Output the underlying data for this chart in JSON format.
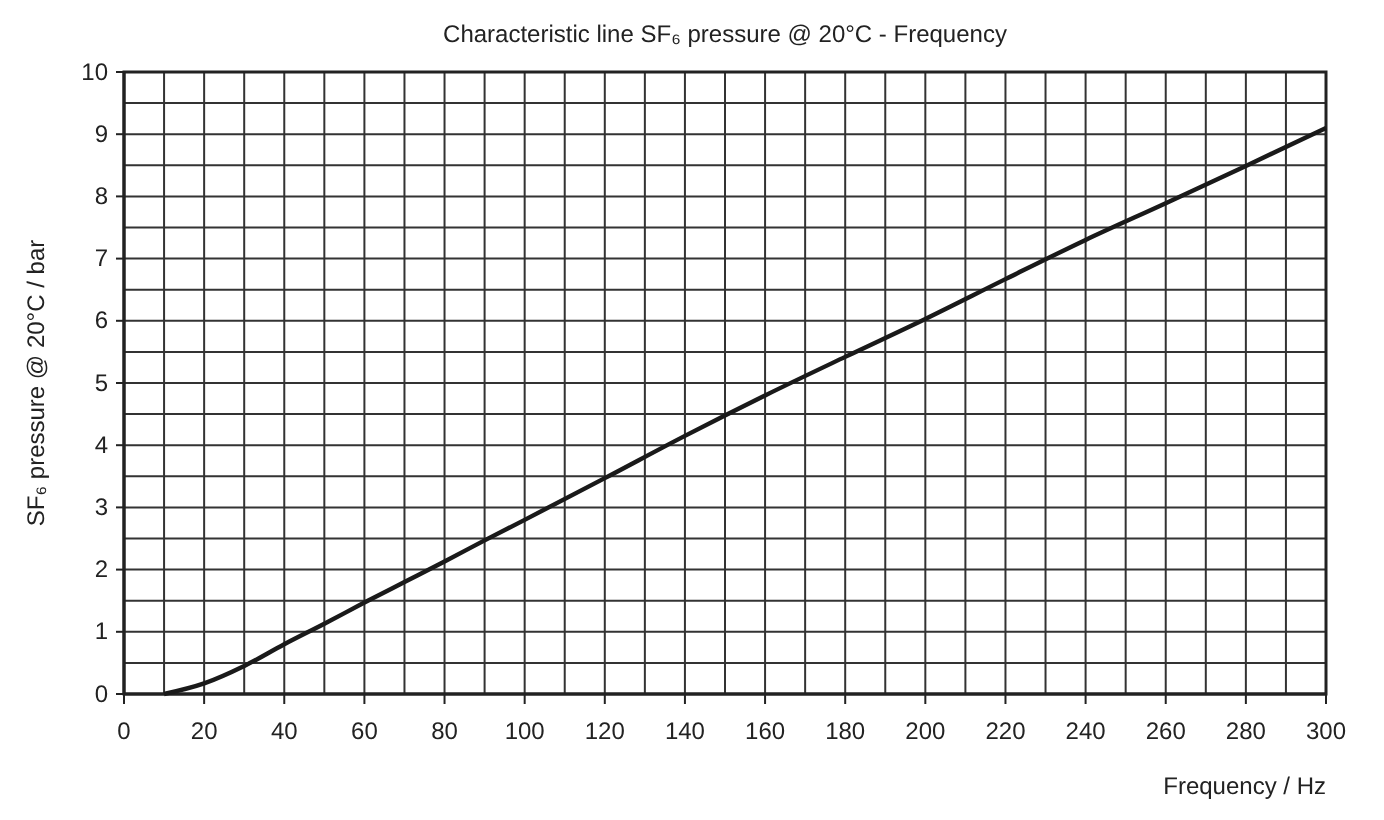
{
  "chart_data": {
    "type": "line",
    "title": "Characteristic line SF₆ pressure @ 20°C - Frequency",
    "xlabel": "Frequency / Hz",
    "ylabel": "SF₆ pressure @ 20°C / bar",
    "x": [
      10,
      20,
      30,
      40,
      50,
      60,
      70,
      80,
      90,
      100,
      120,
      140,
      160,
      180,
      200,
      220,
      240,
      260,
      280,
      300
    ],
    "series": [
      {
        "color": "#1a1a1a",
        "values": [
          0,
          0.17,
          0.45,
          0.8,
          1.13,
          1.47,
          1.8,
          2.13,
          2.47,
          2.8,
          3.47,
          4.15,
          4.8,
          5.42,
          6.03,
          6.67,
          7.3,
          7.89,
          8.49,
          9.1
        ]
      }
    ],
    "xlim": [
      0,
      300
    ],
    "ylim": [
      0,
      10
    ],
    "xticks": [
      0,
      {
        "value": 10,
        "label": null
      },
      20,
      {
        "value": 30,
        "label": null
      },
      40,
      {
        "value": 50,
        "label": null
      },
      60,
      {
        "value": 70,
        "label": null
      },
      80,
      {
        "value": 90,
        "label": null
      },
      100,
      {
        "value": 110,
        "label": null
      },
      120,
      {
        "value": 130,
        "label": null
      },
      140,
      {
        "value": 150,
        "label": null
      },
      160,
      {
        "value": 170,
        "label": null
      },
      180,
      {
        "value": 190,
        "label": null
      },
      200,
      {
        "value": 210,
        "label": null
      },
      220,
      {
        "value": 230,
        "label": null
      },
      240,
      {
        "value": 250,
        "label": null
      },
      260,
      {
        "value": 270,
        "label": null
      },
      280,
      {
        "value": 290,
        "label": null
      },
      300
    ],
    "yticks": [
      0,
      {
        "value": 0.5,
        "label": null
      },
      1,
      {
        "value": 1.5,
        "label": null
      },
      2,
      {
        "value": 2.5,
        "label": null
      },
      3,
      {
        "value": 3.5,
        "label": null
      },
      4,
      {
        "value": 4.5,
        "label": null
      },
      5,
      {
        "value": 5.5,
        "label": null
      },
      6,
      {
        "value": 6.5,
        "label": null
      },
      7,
      {
        "value": 7.5,
        "label": null
      },
      8,
      {
        "value": 8.5,
        "label": null
      },
      9,
      {
        "value": 9.5,
        "label": null
      },
      10
    ],
    "grid": true,
    "marker": "none",
    "line_style": "solid"
  }
}
